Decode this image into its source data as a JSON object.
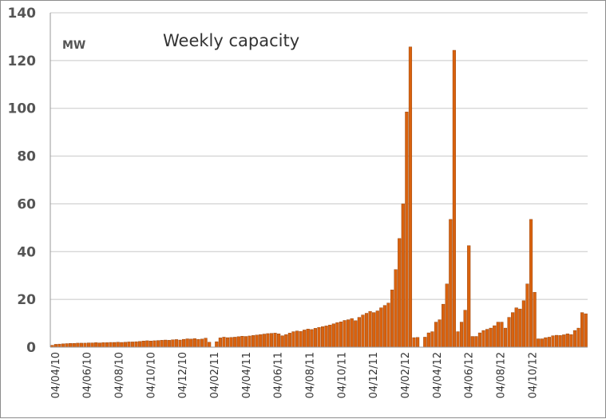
{
  "chart_data": {
    "type": "bar",
    "title": "Weekly capacity",
    "unit_label": "MW",
    "ylim": [
      0,
      140
    ],
    "y_ticks": [
      "0",
      "20",
      "40",
      "60",
      "80",
      "100",
      "120",
      "140"
    ],
    "x_tick_labels": [
      "04/04/10",
      "04/06/10",
      "04/08/10",
      "04/10/10",
      "04/12/10",
      "04/02/11",
      "04/04/11",
      "04/06/11",
      "04/08/11",
      "04/10/11",
      "04/12/11",
      "04/02/12",
      "04/04/12",
      "04/06/12",
      "04/08/12",
      "04/10/12"
    ],
    "grid": "horizontal",
    "bar_color": "#d9620e",
    "series": [
      {
        "values": [
          0.8,
          1.2,
          1.3,
          1.4,
          1.5,
          1.6,
          1.6,
          1.7,
          1.7,
          1.7,
          1.8,
          1.8,
          1.9,
          1.8,
          1.9,
          1.9,
          2.0,
          2.0,
          2.1,
          2.0,
          2.1,
          2.2,
          2.2,
          2.3,
          2.4,
          2.6,
          2.7,
          2.6,
          2.7,
          2.8,
          2.9,
          3.0,
          2.9,
          3.1,
          3.2,
          3.0,
          3.3,
          3.5,
          3.4,
          3.6,
          3.3,
          3.4,
          3.8,
          2.1,
          null,
          2.3,
          3.9,
          4.2,
          4.0,
          4.1,
          4.2,
          4.4,
          4.6,
          4.5,
          4.7,
          4.9,
          5.1,
          5.3,
          5.5,
          5.7,
          5.8,
          5.9,
          5.6,
          4.8,
          5.3,
          5.9,
          6.5,
          6.8,
          6.6,
          7.2,
          7.6,
          7.4,
          7.9,
          8.3,
          8.6,
          8.9,
          9.3,
          9.8,
          10.3,
          10.6,
          11.2,
          11.5,
          12.0,
          11.1,
          12.5,
          13.5,
          14.2,
          15.0,
          14.5,
          15.2,
          16.5,
          17.5,
          18.5,
          24.0,
          32.5,
          45.5,
          60.0,
          98.5,
          125.7,
          4.0,
          4.1,
          null,
          4.2,
          6.0,
          6.5,
          10.5,
          11.5,
          18.0,
          26.5,
          53.5,
          124.3,
          6.5,
          10.5,
          15.5,
          42.5,
          4.5,
          4.5,
          6.0,
          7.0,
          7.5,
          8.0,
          9.0,
          10.5,
          10.5,
          8.0,
          12.5,
          14.5,
          16.5,
          16.0,
          19.5,
          26.5,
          53.5,
          23.0,
          3.5,
          3.5,
          4.0,
          4.2,
          4.8,
          5.0,
          4.9,
          5.2,
          5.6,
          5.3,
          7.0,
          8.0,
          14.5,
          14.0
        ]
      }
    ]
  }
}
